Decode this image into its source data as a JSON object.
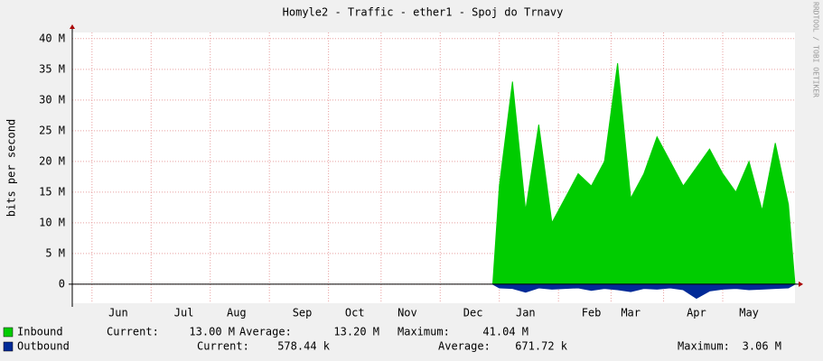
{
  "chart_data": {
    "type": "area",
    "title": "Homyle2 - Traffic - ether1 - Spoj do Trnavy",
    "y_label": "bits per second",
    "watermark": "RRDTOOL / TOBI OETIKER",
    "categories": [
      null,
      null,
      null,
      "Jun",
      null,
      null,
      null,
      null,
      "Jul",
      null,
      null,
      null,
      "Aug",
      null,
      null,
      null,
      null,
      "Sep",
      null,
      null,
      null,
      "Oct",
      null,
      null,
      null,
      "Nov",
      null,
      null,
      null,
      null,
      "Dec",
      null,
      null,
      null,
      "Jan",
      null,
      null,
      null,
      null,
      "Feb",
      null,
      null,
      "Mar",
      null,
      null,
      null,
      null,
      "Apr",
      null,
      null,
      null,
      "May",
      null,
      null,
      null
    ],
    "series": [
      {
        "name": "Inbound",
        "color": "#00cc00",
        "values": [
          null,
          null,
          null,
          null,
          null,
          null,
          null,
          null,
          null,
          null,
          null,
          null,
          null,
          null,
          null,
          null,
          null,
          null,
          null,
          null,
          null,
          null,
          null,
          null,
          null,
          null,
          null,
          null,
          null,
          null,
          null,
          null,
          16000000,
          33000000,
          12000000,
          26000000,
          10000000,
          14000000,
          18000000,
          16000000,
          20000000,
          36000000,
          14000000,
          18000000,
          24000000,
          20000000,
          16000000,
          19000000,
          22000000,
          18000000,
          15000000,
          20000000,
          12000000,
          23000000,
          13000000
        ],
        "stats": [
          {
            "label": "Current:",
            "value": "13.00 M"
          },
          {
            "label": "Average:",
            "value": "13.20 M"
          },
          {
            "label": "Maximum:",
            "value": "41.04 M"
          }
        ]
      },
      {
        "name": "Outbound",
        "color": "#002a97",
        "values": [
          null,
          null,
          null,
          null,
          null,
          null,
          null,
          null,
          null,
          null,
          null,
          null,
          null,
          null,
          null,
          null,
          null,
          null,
          null,
          null,
          null,
          null,
          null,
          null,
          null,
          null,
          null,
          null,
          null,
          null,
          null,
          null,
          -600000,
          -700000,
          -1300000,
          -600000,
          -800000,
          -700000,
          -600000,
          -1000000,
          -700000,
          -900000,
          -1200000,
          -700000,
          -800000,
          -600000,
          -900000,
          -2300000,
          -1100000,
          -800000,
          -700000,
          -900000,
          -800000,
          -700000,
          -600000
        ],
        "stats": [
          {
            "label": "Current:",
            "value": "578.44 k"
          },
          {
            "label": "Average:",
            "value": "671.72 k"
          },
          {
            "label": "Maximum:",
            "value": "3.06 M"
          }
        ]
      }
    ],
    "ylim": [
      -3100000,
      41000000
    ],
    "yticks": [
      0,
      {
        "value": 5000000,
        "label": "5 M"
      },
      {
        "value": 10000000,
        "label": "10 M"
      },
      {
        "value": 15000000,
        "label": "15 M"
      },
      {
        "value": 20000000,
        "label": "20 M"
      },
      {
        "value": 25000000,
        "label": "25 M"
      },
      {
        "value": 30000000,
        "label": "30 M"
      },
      {
        "value": 35000000,
        "label": "35 M"
      },
      {
        "value": 40000000,
        "label": "40 M"
      }
    ],
    "grid": true
  }
}
